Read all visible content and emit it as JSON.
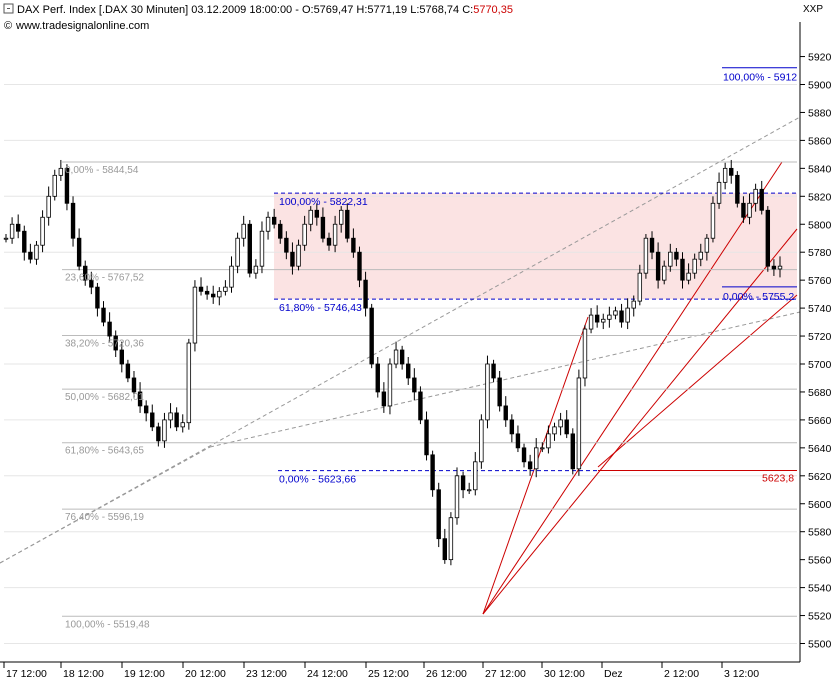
{
  "header": {
    "title_prefix": "DAX Perf. Index [.DAX  30 Minuten] 03.12.2009 18:00:00 - O:5769,47 H:5771,19 L:5768,74 C:",
    "close_value": "5770,35",
    "source": "www.tradesignalonline.com",
    "xxp": "XXP"
  },
  "colors": {
    "candle": "#000000",
    "fib_label_gray": "#999999",
    "fib_line_gray": "#bbbbbb",
    "blue": "#0000cc",
    "red": "#cc0000",
    "zone_fill": "#fbe3e3",
    "grid": "#e6e6e6"
  },
  "chart_data": {
    "type": "candlestick",
    "ylim": [
      5490,
      5935
    ],
    "y_ticks": [
      5500,
      5520,
      5540,
      5560,
      5580,
      5600,
      5620,
      5640,
      5660,
      5680,
      5700,
      5720,
      5740,
      5760,
      5780,
      5800,
      5820,
      5840,
      5860,
      5880,
      5900,
      5920
    ],
    "x_labels": [
      "17  12:00",
      "18  12:00",
      "19  12:00",
      "20  12:00",
      "23  12:00",
      "24  12:00",
      "25  12:00",
      "26  12:00",
      "27  12:00",
      "30  12:00",
      "Dez",
      "2  12:00",
      "3  12:00"
    ],
    "close_path": [
      5790,
      5800,
      5795,
      5780,
      5775,
      5785,
      5805,
      5820,
      5835,
      5840,
      5815,
      5790,
      5770,
      5760,
      5755,
      5740,
      5730,
      5720,
      5710,
      5700,
      5690,
      5680,
      5670,
      5665,
      5655,
      5645,
      5660,
      5665,
      5655,
      5658,
      5715,
      5755,
      5752,
      5750,
      5748,
      5752,
      5755,
      5770,
      5790,
      5800,
      5765,
      5770,
      5795,
      5805,
      5800,
      5790,
      5780,
      5770,
      5785,
      5800,
      5810,
      5805,
      5790,
      5785,
      5800,
      5810,
      5790,
      5780,
      5760,
      5740,
      5700,
      5680,
      5670,
      5700,
      5710,
      5700,
      5690,
      5680,
      5660,
      5635,
      5610,
      5575,
      5560,
      5590,
      5620,
      5610,
      5610,
      5630,
      5660,
      5700,
      5690,
      5670,
      5660,
      5650,
      5640,
      5630,
      5625,
      5640,
      5640,
      5650,
      5655,
      5660,
      5650,
      5625,
      5690,
      5725,
      5735,
      5730,
      5732,
      5735,
      5738,
      5730,
      5740,
      5745,
      5765,
      5790,
      5780,
      5760,
      5770,
      5780,
      5775,
      5760,
      5765,
      5775,
      5780,
      5790,
      5815,
      5830,
      5840,
      5835,
      5815,
      5805,
      5815,
      5825,
      5810,
      5770,
      5768,
      5770
    ],
    "fib_left": [
      {
        "label": "0,00% - 5844,54",
        "value": 5844.54
      },
      {
        "label": "23,60% - 5767,52",
        "value": 5767.52
      },
      {
        "label": "38,20% - 5720,36",
        "value": 5720.36
      },
      {
        "label": "50,00% - 5682,01",
        "value": 5682.01
      },
      {
        "label": "61,80% - 5643,65",
        "value": 5643.65
      },
      {
        "label": "76,40% - 5596,19",
        "value": 5596.19
      },
      {
        "label": "100,00% - 5519,48",
        "value": 5519.48
      }
    ],
    "fib_zone": [
      {
        "label": "100,00% - 5822,31",
        "value": 5822.31
      },
      {
        "label": "61,80% - 5746,43",
        "value": 5746.43
      },
      {
        "label": "0,00% - 5623,66",
        "value": 5623.66
      }
    ],
    "fib_right": [
      {
        "label": "100,00% - 5912",
        "value": 5912
      },
      {
        "label": "0,00% - 5755,2",
        "value": 5755.2
      }
    ],
    "red_level": {
      "label": "5623,8",
      "value": 5623.8
    }
  }
}
